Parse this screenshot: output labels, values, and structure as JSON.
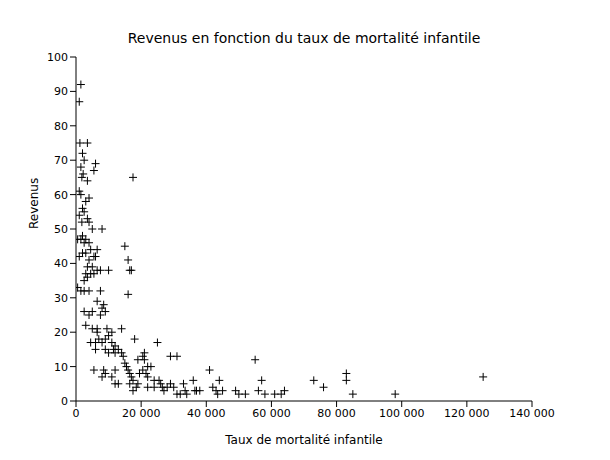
{
  "chart_data": {
    "type": "scatter",
    "title": "Revenus en fonction du taux de mortalité infantile",
    "x_label": "Taux de mortalité infantile",
    "y_label": "Revenus",
    "color": "#000000",
    "marker": "plus",
    "grid": false,
    "xlim": [
      0,
      140000
    ],
    "ylim": [
      0,
      100
    ],
    "xticks": [
      0,
      {
        "value": 20000,
        "label": "20 000"
      },
      {
        "value": 40000,
        "label": "40 000"
      },
      {
        "value": 60000,
        "label": "60 000"
      },
      {
        "value": 80000,
        "label": "80 000"
      },
      {
        "value": 100000,
        "label": "100 000"
      },
      {
        "value": 120000,
        "label": "120 000"
      },
      {
        "value": 140000,
        "label": "140 000"
      }
    ],
    "yticks": [
      0,
      10,
      20,
      30,
      40,
      50,
      60,
      70,
      80,
      90,
      100
    ],
    "x": [
      1000,
      1500,
      1200,
      3500,
      2000,
      2500,
      1500,
      2200,
      1800,
      3500,
      5500,
      6000,
      1000,
      1500,
      3000,
      4000,
      2000,
      2500,
      1000,
      3500,
      1800,
      4000,
      5000,
      8000,
      2000,
      1500,
      3000,
      500,
      2500,
      4000,
      4500,
      6500,
      2000,
      3000,
      1000,
      5500,
      4000,
      6000,
      3500,
      5000,
      7500,
      3000,
      4500,
      5500,
      10000,
      6500,
      2500,
      3500,
      500,
      1500,
      2500,
      4000,
      7500,
      6500,
      8500,
      8000,
      9000,
      2500,
      4000,
      5000,
      7500,
      3000,
      5000,
      6500,
      6500,
      9500,
      11000,
      10000,
      7000,
      9000,
      4500,
      6000,
      8000,
      11000,
      12000,
      6000,
      9000,
      11500,
      13000,
      12000,
      10000,
      14000,
      5500,
      8500,
      9000,
      12000,
      8000,
      11000,
      12000,
      13000,
      14000,
      14500,
      15000,
      15500,
      16000,
      16500,
      17000,
      17500,
      15000,
      16000,
      16500,
      17000,
      16000,
      17500,
      18000,
      19000,
      20500,
      21000,
      21000,
      22000,
      20500,
      21500,
      22000,
      23000,
      24000,
      18500,
      17500,
      19000,
      16500,
      25000,
      25500,
      26000,
      26500,
      28000,
      29000,
      29000,
      31000,
      30000,
      31000,
      32000,
      33500,
      34000,
      36000,
      36500,
      37000,
      38000,
      41000,
      42000,
      43000,
      43500,
      44000,
      45000,
      49000,
      50000,
      52000,
      55000,
      56000,
      57000,
      58000,
      61000,
      63000,
      64000,
      73000,
      76000,
      83000,
      83000,
      85000,
      98000,
      125000,
      33000,
      24000,
      27000,
      19500,
      22000
    ],
    "values": [
      87,
      92,
      75,
      75,
      72,
      70,
      68,
      66,
      65,
      64,
      67,
      69,
      61,
      60,
      58,
      59,
      56,
      55,
      54,
      53,
      52,
      52,
      50,
      50,
      48,
      47,
      47,
      47,
      46,
      46,
      44,
      44,
      43,
      43,
      42,
      42,
      41,
      42,
      39,
      39,
      38,
      37,
      37,
      37,
      38,
      38,
      35,
      36,
      33,
      32,
      32,
      32,
      32,
      29,
      28,
      27,
      26,
      26,
      25,
      26,
      25,
      22,
      21,
      20,
      21,
      21,
      20,
      19,
      18,
      18,
      17,
      17,
      17,
      17,
      16,
      15,
      15,
      15,
      15,
      14,
      14,
      14,
      9,
      9,
      8,
      9,
      7,
      7,
      5,
      5,
      21,
      13,
      11,
      10,
      9,
      8,
      7,
      6,
      45,
      41,
      38,
      38,
      31,
      65,
      18,
      12,
      13,
      14,
      12,
      10,
      9,
      8,
      7,
      10,
      6,
      4,
      3,
      5,
      5,
      17,
      6,
      5,
      4,
      4,
      5,
      13,
      13,
      4,
      2,
      2,
      3,
      2,
      6,
      3,
      3,
      3,
      9,
      4,
      3,
      2,
      6,
      3,
      3,
      2,
      2,
      12,
      3,
      6,
      2,
      2,
      2,
      3,
      6,
      4,
      8,
      6,
      2,
      2,
      7,
      5,
      4,
      3,
      8,
      4
    ]
  }
}
